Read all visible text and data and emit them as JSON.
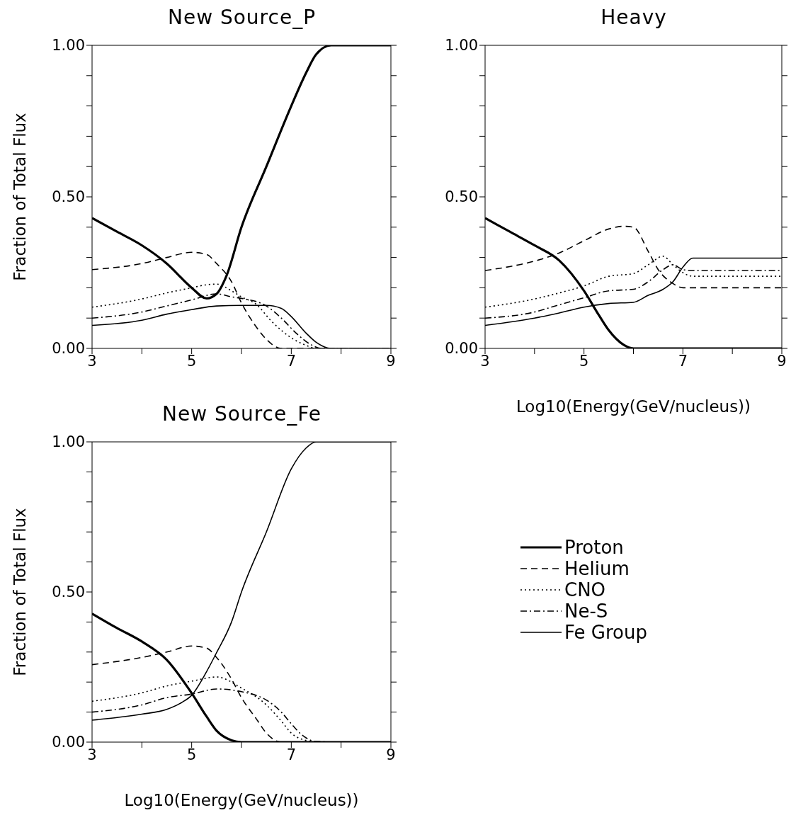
{
  "chart_data": [
    {
      "type": "line",
      "title": "New Source_P",
      "ylabel": "Fraction of Total Flux",
      "xlim": [
        3,
        9
      ],
      "xticks": [
        3,
        {
          "value": 4,
          "label": null
        },
        5,
        {
          "value": 6,
          "label": null
        },
        7,
        {
          "value": 8,
          "label": null
        },
        9
      ],
      "ylim": [
        0,
        1
      ],
      "yticks": [
        {
          "value": 0,
          "label": "0.00"
        },
        {
          "value": 0.1,
          "label": null
        },
        {
          "value": 0.2,
          "label": null
        },
        {
          "value": 0.3,
          "label": null
        },
        {
          "value": 0.4,
          "label": null
        },
        {
          "value": 0.5,
          "label": "0.50"
        },
        {
          "value": 0.6,
          "label": null
        },
        {
          "value": 0.7,
          "label": null
        },
        {
          "value": 0.8,
          "label": null
        },
        {
          "value": 0.9,
          "label": null
        },
        {
          "value": 1,
          "label": "1.00"
        }
      ],
      "marker": "none",
      "series": [
        {
          "color": "#000000",
          "line_style": "solid",
          "x": [
            3,
            3.5,
            4,
            4.5,
            5,
            5.3,
            5.5,
            5.7,
            6,
            6.5,
            7,
            7.3,
            7.5,
            7.8,
            8,
            9
          ],
          "values": [
            0.43,
            0.385,
            0.34,
            0.28,
            0.2,
            0.165,
            0.18,
            0.24,
            0.4,
            0.6,
            0.8,
            0.91,
            0.97,
            1.0,
            1.0,
            1.0
          ]
        },
        {
          "color": "#000000",
          "line_style": "dashed",
          "x": [
            3,
            4,
            4.5,
            5,
            5.3,
            5.5,
            5.8,
            6,
            6.3,
            6.5,
            6.8,
            7,
            9
          ],
          "values": [
            0.26,
            0.28,
            0.3,
            0.317,
            0.31,
            0.28,
            0.22,
            0.15,
            0.07,
            0.03,
            0.0,
            0.0,
            0.0
          ]
        },
        {
          "color": "#000000",
          "line_style": "dotted",
          "x": [
            3,
            4,
            4.5,
            5,
            5.3,
            5.5,
            5.8,
            6,
            6.3,
            6.6,
            7,
            7.3,
            7.5,
            9
          ],
          "values": [
            0.136,
            0.163,
            0.183,
            0.2,
            0.21,
            0.212,
            0.19,
            0.17,
            0.145,
            0.09,
            0.035,
            0.01,
            0.0,
            0.0
          ]
        },
        {
          "color": "#000000",
          "line_style": "dashdot",
          "x": [
            3,
            4,
            4.5,
            5,
            5.5,
            5.8,
            6,
            6.5,
            6.8,
            7.1,
            7.4,
            7.6,
            9
          ],
          "values": [
            0.1,
            0.12,
            0.14,
            0.16,
            0.18,
            0.17,
            0.165,
            0.14,
            0.1,
            0.05,
            0.012,
            0.0,
            0.0
          ]
        },
        {
          "color": "#000000",
          "line_style": "solid",
          "x": [
            3,
            4,
            4.5,
            5,
            5.5,
            6,
            6.5,
            6.8,
            7,
            7.3,
            7.5,
            7.8,
            9
          ],
          "values": [
            0.076,
            0.093,
            0.113,
            0.128,
            0.14,
            0.142,
            0.142,
            0.132,
            0.105,
            0.05,
            0.02,
            0.0,
            0.0
          ]
        }
      ]
    },
    {
      "type": "line",
      "title": "Heavy",
      "xlabel": "Log10(Energy(GeV/nucleus))",
      "xlim": [
        3,
        9
      ],
      "xticks": [
        3,
        {
          "value": 4,
          "label": null
        },
        5,
        {
          "value": 6,
          "label": null
        },
        7,
        {
          "value": 8,
          "label": null
        },
        9
      ],
      "ylim": [
        0,
        1
      ],
      "yticks": [
        {
          "value": 0,
          "label": "0.00"
        },
        {
          "value": 0.1,
          "label": null
        },
        {
          "value": 0.2,
          "label": null
        },
        {
          "value": 0.3,
          "label": null
        },
        {
          "value": 0.4,
          "label": null
        },
        {
          "value": 0.5,
          "label": "0.50"
        },
        {
          "value": 0.6,
          "label": null
        },
        {
          "value": 0.7,
          "label": null
        },
        {
          "value": 0.8,
          "label": null
        },
        {
          "value": 0.9,
          "label": null
        },
        {
          "value": 1,
          "label": "1.00"
        }
      ],
      "marker": "none",
      "series": [
        {
          "color": "#000000",
          "line_style": "solid",
          "x": [
            3,
            3.5,
            4,
            4.5,
            5,
            5.3,
            5.5,
            5.8,
            6,
            9
          ],
          "values": [
            0.43,
            0.385,
            0.34,
            0.29,
            0.19,
            0.11,
            0.06,
            0.012,
            0.0,
            0.0
          ]
        },
        {
          "color": "#000000",
          "line_style": "dashed",
          "x": [
            3,
            3.5,
            4,
            4.5,
            5,
            5.5,
            5.8,
            6,
            6.3,
            6.5,
            6.8,
            7,
            7.2,
            9
          ],
          "values": [
            0.257,
            0.27,
            0.288,
            0.315,
            0.355,
            0.394,
            0.403,
            0.4,
            0.32,
            0.26,
            0.214,
            0.2,
            0.2,
            0.2
          ]
        },
        {
          "color": "#000000",
          "line_style": "dotted",
          "x": [
            3,
            4,
            4.5,
            5,
            5.5,
            6,
            6.3,
            6.6,
            6.8,
            7,
            7.2,
            9
          ],
          "values": [
            0.136,
            0.163,
            0.183,
            0.206,
            0.238,
            0.247,
            0.276,
            0.304,
            0.276,
            0.25,
            0.238,
            0.238
          ]
        },
        {
          "color": "#000000",
          "line_style": "dashdot",
          "x": [
            3,
            4,
            4.5,
            5,
            5.5,
            6,
            6.3,
            6.6,
            6.8,
            7,
            7.2,
            9
          ],
          "values": [
            0.1,
            0.12,
            0.144,
            0.167,
            0.19,
            0.195,
            0.22,
            0.26,
            0.276,
            0.26,
            0.257,
            0.257
          ]
        },
        {
          "color": "#000000",
          "line_style": "solid",
          "x": [
            3,
            4,
            4.5,
            5,
            5.5,
            6,
            6.3,
            6.6,
            6.8,
            7,
            7.2,
            9
          ],
          "values": [
            0.076,
            0.1,
            0.117,
            0.136,
            0.148,
            0.152,
            0.175,
            0.195,
            0.22,
            0.268,
            0.298,
            0.298
          ]
        }
      ]
    },
    {
      "type": "line",
      "title": "New Source_Fe",
      "xlabel": "Log10(Energy(GeV/nucleus))",
      "ylabel": "Fraction of Total Flux",
      "xlim": [
        3,
        9
      ],
      "xticks": [
        3,
        {
          "value": 4,
          "label": null
        },
        5,
        {
          "value": 6,
          "label": null
        },
        7,
        {
          "value": 8,
          "label": null
        },
        9
      ],
      "ylim": [
        0,
        1
      ],
      "yticks": [
        {
          "value": 0,
          "label": "0.00"
        },
        {
          "value": 0.1,
          "label": null
        },
        {
          "value": 0.2,
          "label": null
        },
        {
          "value": 0.3,
          "label": null
        },
        {
          "value": 0.4,
          "label": null
        },
        {
          "value": 0.5,
          "label": "0.50"
        },
        {
          "value": 0.6,
          "label": null
        },
        {
          "value": 0.7,
          "label": null
        },
        {
          "value": 0.8,
          "label": null
        },
        {
          "value": 0.9,
          "label": null
        },
        {
          "value": 1,
          "label": "1.00"
        }
      ],
      "marker": "none",
      "legend": "right",
      "series": [
        {
          "name": "Proton",
          "color": "#000000",
          "line_style": "solid",
          "x": [
            3,
            3.5,
            4,
            4.5,
            5,
            5.3,
            5.5,
            5.8,
            6,
            9
          ],
          "values": [
            0.428,
            0.38,
            0.335,
            0.274,
            0.163,
            0.085,
            0.038,
            0.006,
            0.0,
            0.0
          ]
        },
        {
          "name": "Helium",
          "color": "#000000",
          "line_style": "dashed",
          "x": [
            3,
            4,
            4.5,
            5,
            5.3,
            5.5,
            5.8,
            6,
            6.3,
            6.5,
            6.8,
            7,
            9
          ],
          "values": [
            0.258,
            0.282,
            0.3,
            0.32,
            0.313,
            0.282,
            0.21,
            0.148,
            0.077,
            0.03,
            0.0,
            0.0,
            0.0
          ]
        },
        {
          "name": "CNO",
          "color": "#000000",
          "line_style": "dotted",
          "x": [
            3,
            4,
            4.5,
            5,
            5.5,
            6,
            6.5,
            6.8,
            7,
            7.3,
            7.5,
            9
          ],
          "values": [
            0.136,
            0.164,
            0.187,
            0.203,
            0.217,
            0.18,
            0.124,
            0.07,
            0.03,
            0.005,
            0.0,
            0.0
          ]
        },
        {
          "name": "Ne-S",
          "color": "#000000",
          "line_style": "dashdot",
          "x": [
            3,
            4,
            4.5,
            5,
            5.5,
            6,
            6.5,
            6.8,
            7,
            7.2,
            7.5,
            8,
            9
          ],
          "values": [
            0.1,
            0.124,
            0.148,
            0.16,
            0.177,
            0.168,
            0.14,
            0.1,
            0.061,
            0.026,
            0.002,
            0.0,
            0.0
          ]
        },
        {
          "name": "Fe Group",
          "color": "#000000",
          "line_style": "solid",
          "x": [
            3,
            4,
            4.5,
            4.8,
            5,
            5.3,
            5.5,
            5.8,
            6,
            6.5,
            7,
            7.3,
            7.5,
            9
          ],
          "values": [
            0.073,
            0.093,
            0.109,
            0.132,
            0.156,
            0.235,
            0.298,
            0.4,
            0.5,
            0.7,
            0.91,
            0.98,
            1.0,
            1.0
          ]
        }
      ]
    }
  ]
}
